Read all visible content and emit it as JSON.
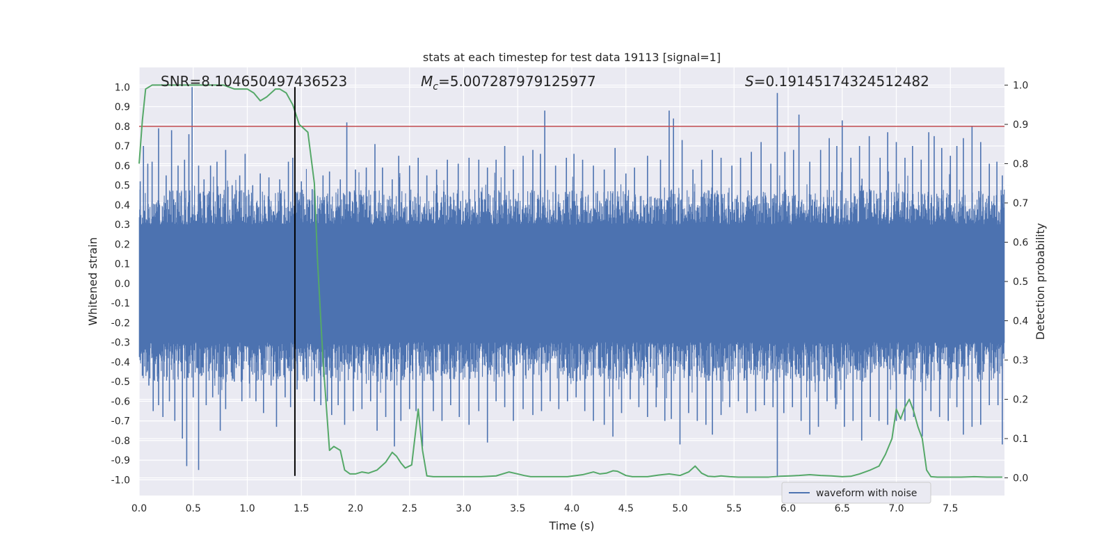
{
  "chart_data": {
    "type": "line",
    "title": "stats at each timestep for test data 19113 [signal=1]",
    "xlabel": "Time (s)",
    "ylabel": "Whitened strain",
    "y2label": "Detection probability",
    "xlim": [
      0,
      8
    ],
    "ylim": [
      -1.08,
      1.1
    ],
    "y2lim": [
      -0.045,
      1.045
    ],
    "x_ticks": [
      0.0,
      0.5,
      1.0,
      1.5,
      2.0,
      2.5,
      3.0,
      3.5,
      4.0,
      4.5,
      5.0,
      5.5,
      6.0,
      6.5,
      7.0,
      7.5
    ],
    "x_tick_labels": [
      "0.0",
      "0.5",
      "1.0",
      "1.5",
      "2.0",
      "2.5",
      "3.0",
      "3.5",
      "4.0",
      "4.5",
      "5.0",
      "5.5",
      "6.0",
      "6.5",
      "7.0",
      "7.5"
    ],
    "y_ticks": [
      1.0,
      0.9,
      0.8,
      0.7,
      0.6,
      0.5,
      0.4,
      0.3,
      0.2,
      0.1,
      0.0,
      -0.1,
      -0.2,
      -0.3,
      -0.4,
      -0.5,
      -0.6,
      -0.7,
      -0.8,
      -0.9,
      -1.0
    ],
    "y_tick_labels": [
      "1.0",
      "0.9",
      "0.8",
      "0.7",
      "0.6",
      "0.5",
      "0.4",
      "0.3",
      "0.2",
      "0.1",
      "0.0",
      "-0.1",
      "-0.2",
      "-0.3",
      "-0.4",
      "-0.5",
      "-0.6",
      "-0.7",
      "-0.8",
      "-0.9",
      "-1.0"
    ],
    "y2_ticks": [
      1.0,
      0.9,
      0.8,
      0.7,
      0.6,
      0.5,
      0.4,
      0.3,
      0.2,
      0.1,
      0.0
    ],
    "y2_tick_labels": [
      "1.0",
      "0.9",
      "0.8",
      "0.7",
      "0.6",
      "0.5",
      "0.4",
      "0.3",
      "0.2",
      "0.1",
      "0.0"
    ],
    "grid": true,
    "legend_position": "bottom-right",
    "annotations": {
      "snr_text": "SNR=8.104650497436523",
      "mc_prefix": "M",
      "mc_subscript": "c",
      "mc_value": "=5.007287979125977",
      "s_prefix": "S",
      "s_value": "=0.19145174324512482"
    },
    "threshold_line": {
      "y": 0.8,
      "color": "#c44e52"
    },
    "marker_line": {
      "x": 1.44,
      "color": "#000000"
    },
    "series": [
      {
        "name": "waveform with noise",
        "color": "#4c72b0",
        "axis": "left",
        "envelope_note": "dense noise",
        "spikes_pos": [
          [
            0.01,
            0.52
          ],
          [
            0.04,
            0.7
          ],
          [
            0.08,
            0.61
          ],
          [
            0.12,
            0.62
          ],
          [
            0.18,
            0.79
          ],
          [
            0.25,
            0.55
          ],
          [
            0.3,
            0.78
          ],
          [
            0.36,
            0.6
          ],
          [
            0.42,
            0.63
          ],
          [
            0.46,
            0.76
          ],
          [
            0.49,
            1.0
          ],
          [
            0.55,
            0.6
          ],
          [
            0.6,
            0.53
          ],
          [
            0.66,
            0.6
          ],
          [
            0.72,
            0.62
          ],
          [
            0.8,
            0.68
          ],
          [
            0.86,
            0.5
          ],
          [
            0.93,
            0.55
          ],
          [
            0.98,
            0.66
          ],
          [
            1.05,
            0.5
          ],
          [
            1.12,
            0.56
          ],
          [
            1.2,
            0.54
          ],
          [
            1.3,
            0.53
          ],
          [
            1.38,
            0.62
          ],
          [
            1.42,
            0.64
          ],
          [
            1.5,
            0.52
          ],
          [
            1.6,
            0.48
          ],
          [
            1.7,
            0.55
          ],
          [
            1.76,
            0.57
          ],
          [
            1.86,
            0.53
          ],
          [
            1.92,
            0.82
          ],
          [
            2.0,
            0.58
          ],
          [
            2.1,
            0.59
          ],
          [
            2.18,
            0.71
          ],
          [
            2.25,
            0.59
          ],
          [
            2.34,
            0.53
          ],
          [
            2.4,
            0.65
          ],
          [
            2.5,
            0.6
          ],
          [
            2.58,
            0.64
          ],
          [
            2.66,
            0.55
          ],
          [
            2.75,
            0.58
          ],
          [
            2.85,
            0.63
          ],
          [
            2.95,
            0.61
          ],
          [
            3.05,
            0.64
          ],
          [
            3.14,
            0.63
          ],
          [
            3.22,
            0.59
          ],
          [
            3.3,
            0.63
          ],
          [
            3.38,
            0.7
          ],
          [
            3.46,
            0.58
          ],
          [
            3.55,
            0.65
          ],
          [
            3.64,
            0.68
          ],
          [
            3.71,
            0.66
          ],
          [
            3.75,
            0.88
          ],
          [
            3.85,
            0.6
          ],
          [
            3.95,
            0.64
          ],
          [
            4.02,
            0.66
          ],
          [
            4.1,
            0.63
          ],
          [
            4.2,
            0.6
          ],
          [
            4.3,
            0.58
          ],
          [
            4.4,
            0.69
          ],
          [
            4.5,
            0.56
          ],
          [
            4.58,
            0.59
          ],
          [
            4.7,
            0.65
          ],
          [
            4.82,
            0.63
          ],
          [
            4.9,
            0.88
          ],
          [
            4.94,
            0.84
          ],
          [
            5.02,
            0.73
          ],
          [
            5.12,
            0.58
          ],
          [
            5.2,
            0.63
          ],
          [
            5.3,
            0.68
          ],
          [
            5.38,
            0.64
          ],
          [
            5.48,
            0.6
          ],
          [
            5.56,
            0.64
          ],
          [
            5.66,
            0.67
          ],
          [
            5.75,
            0.72
          ],
          [
            5.84,
            0.61
          ],
          [
            5.9,
            0.97
          ],
          [
            5.97,
            0.67
          ],
          [
            6.05,
            0.68
          ],
          [
            6.1,
            0.86
          ],
          [
            6.2,
            0.62
          ],
          [
            6.3,
            0.68
          ],
          [
            6.38,
            0.74
          ],
          [
            6.45,
            0.7
          ],
          [
            6.5,
            0.83
          ],
          [
            6.58,
            0.64
          ],
          [
            6.66,
            0.7
          ],
          [
            6.75,
            0.75
          ],
          [
            6.85,
            0.64
          ],
          [
            6.92,
            0.77
          ],
          [
            7.0,
            0.72
          ],
          [
            7.08,
            0.64
          ],
          [
            7.15,
            0.7
          ],
          [
            7.23,
            0.63
          ],
          [
            7.3,
            0.77
          ],
          [
            7.35,
            0.75
          ],
          [
            7.42,
            0.69
          ],
          [
            7.5,
            0.65
          ],
          [
            7.56,
            0.7
          ],
          [
            7.62,
            0.74
          ],
          [
            7.7,
            0.8
          ],
          [
            7.78,
            0.72
          ],
          [
            7.86,
            0.61
          ],
          [
            7.93,
            0.62
          ],
          [
            7.98,
            0.55
          ]
        ],
        "spikes_neg": [
          [
            0.03,
            -0.47
          ],
          [
            0.09,
            -0.52
          ],
          [
            0.13,
            -0.65
          ],
          [
            0.18,
            -0.62
          ],
          [
            0.22,
            -0.68
          ],
          [
            0.28,
            -0.6
          ],
          [
            0.33,
            -0.7
          ],
          [
            0.4,
            -0.79
          ],
          [
            0.44,
            -0.93
          ],
          [
            0.5,
            -0.58
          ],
          [
            0.55,
            -0.95
          ],
          [
            0.62,
            -0.62
          ],
          [
            0.68,
            -0.58
          ],
          [
            0.75,
            -0.75
          ],
          [
            0.8,
            -0.64
          ],
          [
            0.88,
            -0.5
          ],
          [
            0.95,
            -0.6
          ],
          [
            1.02,
            -0.51
          ],
          [
            1.08,
            -0.6
          ],
          [
            1.15,
            -0.66
          ],
          [
            1.22,
            -0.52
          ],
          [
            1.27,
            -0.73
          ],
          [
            1.35,
            -0.58
          ],
          [
            1.4,
            -0.63
          ],
          [
            1.46,
            -0.54
          ],
          [
            1.55,
            -0.5
          ],
          [
            1.62,
            -0.6
          ],
          [
            1.68,
            -0.62
          ],
          [
            1.74,
            -0.6
          ],
          [
            1.78,
            -0.67
          ],
          [
            1.84,
            -0.62
          ],
          [
            1.9,
            -0.72
          ],
          [
            1.98,
            -0.65
          ],
          [
            2.06,
            -0.64
          ],
          [
            2.14,
            -0.6
          ],
          [
            2.2,
            -0.75
          ],
          [
            2.28,
            -0.68
          ],
          [
            2.36,
            -0.83
          ],
          [
            2.42,
            -0.7
          ],
          [
            2.5,
            -0.64
          ],
          [
            2.56,
            -0.65
          ],
          [
            2.62,
            -0.83
          ],
          [
            2.72,
            -0.65
          ],
          [
            2.8,
            -0.7
          ],
          [
            2.88,
            -0.62
          ],
          [
            2.96,
            -0.68
          ],
          [
            3.05,
            -0.72
          ],
          [
            3.14,
            -0.65
          ],
          [
            3.22,
            -0.81
          ],
          [
            3.3,
            -0.6
          ],
          [
            3.38,
            -0.63
          ],
          [
            3.46,
            -0.7
          ],
          [
            3.55,
            -0.64
          ],
          [
            3.64,
            -0.67
          ],
          [
            3.72,
            -0.65
          ],
          [
            3.8,
            -0.6
          ],
          [
            3.88,
            -0.64
          ],
          [
            3.96,
            -0.6
          ],
          [
            4.04,
            -0.58
          ],
          [
            4.12,
            -0.65
          ],
          [
            4.2,
            -0.7
          ],
          [
            4.3,
            -0.72
          ],
          [
            4.38,
            -0.78
          ],
          [
            4.46,
            -0.66
          ],
          [
            4.54,
            -0.59
          ],
          [
            4.62,
            -0.63
          ],
          [
            4.7,
            -0.68
          ],
          [
            4.78,
            -0.63
          ],
          [
            4.86,
            -0.7
          ],
          [
            4.92,
            -0.69
          ],
          [
            5.0,
            -0.82
          ],
          [
            5.08,
            -0.66
          ],
          [
            5.16,
            -0.7
          ],
          [
            5.24,
            -0.72
          ],
          [
            5.3,
            -0.77
          ],
          [
            5.38,
            -0.67
          ],
          [
            5.46,
            -0.63
          ],
          [
            5.54,
            -0.6
          ],
          [
            5.62,
            -0.66
          ],
          [
            5.7,
            -0.65
          ],
          [
            5.78,
            -0.62
          ],
          [
            5.86,
            -0.63
          ],
          [
            5.9,
            -0.98
          ],
          [
            5.96,
            -0.66
          ],
          [
            6.04,
            -0.63
          ],
          [
            6.12,
            -0.7
          ],
          [
            6.2,
            -0.77
          ],
          [
            6.28,
            -0.73
          ],
          [
            6.36,
            -0.6
          ],
          [
            6.44,
            -0.64
          ],
          [
            6.52,
            -0.73
          ],
          [
            6.6,
            -0.7
          ],
          [
            6.68,
            -0.8
          ],
          [
            6.76,
            -0.68
          ],
          [
            6.84,
            -0.7
          ],
          [
            6.92,
            -0.72
          ],
          [
            7.0,
            -0.7
          ],
          [
            7.08,
            -0.7
          ],
          [
            7.16,
            -0.68
          ],
          [
            7.24,
            -0.78
          ],
          [
            7.32,
            -0.65
          ],
          [
            7.4,
            -0.68
          ],
          [
            7.48,
            -0.7
          ],
          [
            7.56,
            -0.63
          ],
          [
            7.62,
            -0.77
          ],
          [
            7.7,
            -0.73
          ],
          [
            7.78,
            -0.72
          ],
          [
            7.86,
            -0.62
          ],
          [
            7.94,
            -0.62
          ],
          [
            7.98,
            -0.82
          ]
        ]
      },
      {
        "name": "",
        "color": "#55a868",
        "axis": "right",
        "x": [
          0.0,
          0.03,
          0.06,
          0.12,
          0.2,
          0.3,
          0.4,
          0.5,
          0.6,
          0.7,
          0.78,
          0.88,
          1.0,
          1.06,
          1.12,
          1.18,
          1.26,
          1.3,
          1.36,
          1.42,
          1.48,
          1.56,
          1.62,
          1.65,
          1.7,
          1.76,
          1.8,
          1.86,
          1.9,
          1.95,
          2.0,
          2.06,
          2.12,
          2.2,
          2.28,
          2.34,
          2.38,
          2.42,
          2.46,
          2.52,
          2.58,
          2.62,
          2.66,
          2.72,
          2.78,
          2.84,
          2.94,
          3.04,
          3.16,
          3.3,
          3.42,
          3.5,
          3.56,
          3.62,
          3.72,
          3.84,
          3.96,
          4.1,
          4.2,
          4.26,
          4.32,
          4.38,
          4.42,
          4.5,
          4.56,
          4.62,
          4.7,
          4.8,
          4.9,
          5.0,
          5.08,
          5.14,
          5.2,
          5.26,
          5.32,
          5.38,
          5.46,
          5.54,
          5.62,
          5.72,
          5.82,
          5.92,
          6.02,
          6.1,
          6.2,
          6.3,
          6.4,
          6.5,
          6.58,
          6.66,
          6.76,
          6.84,
          6.9,
          6.96,
          7.0,
          7.04,
          7.08,
          7.12,
          7.16,
          7.2,
          7.24,
          7.28,
          7.32,
          7.38,
          7.48,
          7.6,
          7.72,
          7.84,
          7.98
        ],
        "values": [
          0.8,
          0.91,
          0.99,
          1.0,
          1.0,
          1.0,
          1.0,
          1.0,
          1.0,
          1.0,
          1.0,
          0.99,
          0.99,
          0.98,
          0.96,
          0.97,
          0.99,
          0.99,
          0.98,
          0.95,
          0.9,
          0.88,
          0.75,
          0.55,
          0.3,
          0.07,
          0.08,
          0.07,
          0.02,
          0.01,
          0.01,
          0.015,
          0.012,
          0.02,
          0.04,
          0.065,
          0.055,
          0.038,
          0.025,
          0.033,
          0.175,
          0.07,
          0.005,
          0.003,
          0.003,
          0.003,
          0.003,
          0.003,
          0.003,
          0.005,
          0.015,
          0.01,
          0.006,
          0.003,
          0.003,
          0.003,
          0.003,
          0.008,
          0.015,
          0.01,
          0.012,
          0.018,
          0.017,
          0.006,
          0.003,
          0.003,
          0.003,
          0.007,
          0.01,
          0.006,
          0.015,
          0.03,
          0.012,
          0.004,
          0.003,
          0.005,
          0.003,
          0.002,
          0.002,
          0.002,
          0.002,
          0.004,
          0.005,
          0.006,
          0.008,
          0.006,
          0.005,
          0.003,
          0.004,
          0.01,
          0.02,
          0.03,
          0.06,
          0.1,
          0.175,
          0.15,
          0.18,
          0.2,
          0.17,
          0.13,
          0.1,
          0.02,
          0.003,
          0.002,
          0.002,
          0.002,
          0.003,
          0.002,
          0.002
        ]
      }
    ]
  }
}
